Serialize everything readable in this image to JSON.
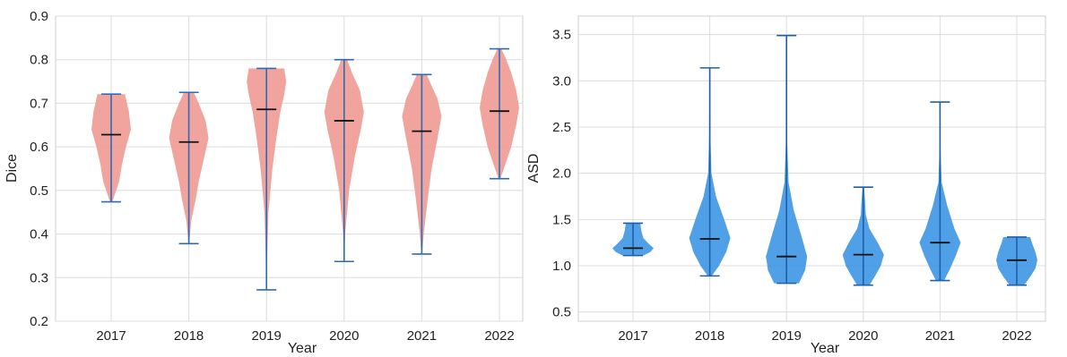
{
  "chart_data": [
    {
      "type": "violin",
      "xlabel": "Year",
      "ylabel": "Dice",
      "categories": [
        "2017",
        "2018",
        "2019",
        "2020",
        "2021",
        "2022"
      ],
      "ylim": [
        0.2,
        0.9
      ],
      "yticks": [
        "0.2",
        "0.3",
        "0.4",
        "0.5",
        "0.6",
        "0.7",
        "0.8",
        "0.9"
      ],
      "grid": true,
      "fill_color": "#ef9a94",
      "line_color": "#2e6bb3",
      "median_color": "#111111",
      "violins": [
        {
          "min": 0.474,
          "max": 0.721,
          "median": 0.628,
          "profile": [
            [
              0.474,
              0.06
            ],
            [
              0.52,
              0.4
            ],
            [
              0.56,
              0.55
            ],
            [
              0.6,
              0.75
            ],
            [
              0.64,
              1.0
            ],
            [
              0.68,
              0.9
            ],
            [
              0.7,
              0.8
            ],
            [
              0.721,
              0.7
            ]
          ]
        },
        {
          "min": 0.378,
          "max": 0.725,
          "median": 0.611,
          "profile": [
            [
              0.378,
              0.02
            ],
            [
              0.43,
              0.12
            ],
            [
              0.48,
              0.35
            ],
            [
              0.52,
              0.5
            ],
            [
              0.58,
              0.8
            ],
            [
              0.62,
              1.0
            ],
            [
              0.66,
              0.85
            ],
            [
              0.7,
              0.5
            ],
            [
              0.725,
              0.25
            ]
          ]
        },
        {
          "min": 0.272,
          "max": 0.78,
          "median": 0.686,
          "profile": [
            [
              0.272,
              0.01
            ],
            [
              0.35,
              0.04
            ],
            [
              0.45,
              0.1
            ],
            [
              0.55,
              0.3
            ],
            [
              0.62,
              0.5
            ],
            [
              0.68,
              0.7
            ],
            [
              0.72,
              0.9
            ],
            [
              0.75,
              1.0
            ],
            [
              0.78,
              0.9
            ]
          ]
        },
        {
          "min": 0.337,
          "max": 0.8,
          "median": 0.66,
          "profile": [
            [
              0.337,
              0.01
            ],
            [
              0.4,
              0.05
            ],
            [
              0.5,
              0.25
            ],
            [
              0.58,
              0.55
            ],
            [
              0.64,
              0.85
            ],
            [
              0.68,
              1.0
            ],
            [
              0.73,
              0.8
            ],
            [
              0.77,
              0.4
            ],
            [
              0.8,
              0.15
            ]
          ]
        },
        {
          "min": 0.354,
          "max": 0.766,
          "median": 0.636,
          "profile": [
            [
              0.354,
              0.02
            ],
            [
              0.4,
              0.1
            ],
            [
              0.48,
              0.3
            ],
            [
              0.55,
              0.5
            ],
            [
              0.62,
              0.8
            ],
            [
              0.67,
              1.0
            ],
            [
              0.71,
              0.8
            ],
            [
              0.74,
              0.5
            ],
            [
              0.766,
              0.25
            ]
          ]
        },
        {
          "min": 0.527,
          "max": 0.825,
          "median": 0.682,
          "profile": [
            [
              0.527,
              0.05
            ],
            [
              0.56,
              0.3
            ],
            [
              0.6,
              0.6
            ],
            [
              0.65,
              0.85
            ],
            [
              0.69,
              1.0
            ],
            [
              0.73,
              0.85
            ],
            [
              0.77,
              0.6
            ],
            [
              0.8,
              0.35
            ],
            [
              0.825,
              0.1
            ]
          ]
        }
      ]
    },
    {
      "type": "violin",
      "xlabel": "Year",
      "ylabel": "ASD",
      "categories": [
        "2017",
        "2018",
        "2019",
        "2020",
        "2021",
        "2022"
      ],
      "ylim": [
        0.4,
        3.7
      ],
      "yticks": [
        "0.5",
        "1.0",
        "1.5",
        "2.0",
        "2.5",
        "3.0",
        "3.5"
      ],
      "grid": true,
      "fill_color": "#3d96e6",
      "line_color": "#1f5fa8",
      "median_color": "#111111",
      "violins": [
        {
          "min": 1.11,
          "max": 1.46,
          "median": 1.19,
          "profile": [
            [
              1.11,
              0.5
            ],
            [
              1.15,
              0.85
            ],
            [
              1.19,
              1.0
            ],
            [
              1.24,
              0.75
            ],
            [
              1.3,
              0.5
            ],
            [
              1.38,
              0.4
            ],
            [
              1.46,
              0.35
            ]
          ]
        },
        {
          "min": 0.89,
          "max": 3.14,
          "median": 1.29,
          "profile": [
            [
              0.89,
              0.1
            ],
            [
              1.0,
              0.45
            ],
            [
              1.15,
              0.8
            ],
            [
              1.3,
              1.0
            ],
            [
              1.5,
              0.7
            ],
            [
              1.75,
              0.3
            ],
            [
              2.0,
              0.08
            ],
            [
              2.4,
              0.03
            ],
            [
              3.14,
              0.02
            ]
          ]
        },
        {
          "min": 0.81,
          "max": 3.49,
          "median": 1.1,
          "profile": [
            [
              0.81,
              0.6
            ],
            [
              0.95,
              0.9
            ],
            [
              1.1,
              1.0
            ],
            [
              1.3,
              0.75
            ],
            [
              1.6,
              0.35
            ],
            [
              1.9,
              0.1
            ],
            [
              2.4,
              0.02
            ],
            [
              3.49,
              0.01
            ]
          ]
        },
        {
          "min": 0.79,
          "max": 1.85,
          "median": 1.12,
          "profile": [
            [
              0.79,
              0.3
            ],
            [
              0.9,
              0.6
            ],
            [
              1.0,
              0.85
            ],
            [
              1.12,
              1.0
            ],
            [
              1.25,
              0.7
            ],
            [
              1.4,
              0.3
            ],
            [
              1.55,
              0.12
            ],
            [
              1.65,
              0.1
            ],
            [
              1.85,
              0.04
            ]
          ]
        },
        {
          "min": 0.84,
          "max": 2.77,
          "median": 1.25,
          "profile": [
            [
              0.84,
              0.2
            ],
            [
              0.95,
              0.45
            ],
            [
              1.1,
              0.75
            ],
            [
              1.25,
              1.0
            ],
            [
              1.4,
              0.7
            ],
            [
              1.65,
              0.35
            ],
            [
              1.9,
              0.08
            ],
            [
              2.3,
              0.02
            ],
            [
              2.77,
              0.01
            ]
          ]
        },
        {
          "min": 0.79,
          "max": 1.31,
          "median": 1.06,
          "profile": [
            [
              0.79,
              0.35
            ],
            [
              0.88,
              0.65
            ],
            [
              0.97,
              0.9
            ],
            [
              1.06,
              1.0
            ],
            [
              1.15,
              0.9
            ],
            [
              1.24,
              0.75
            ],
            [
              1.31,
              0.65
            ]
          ]
        }
      ]
    }
  ]
}
